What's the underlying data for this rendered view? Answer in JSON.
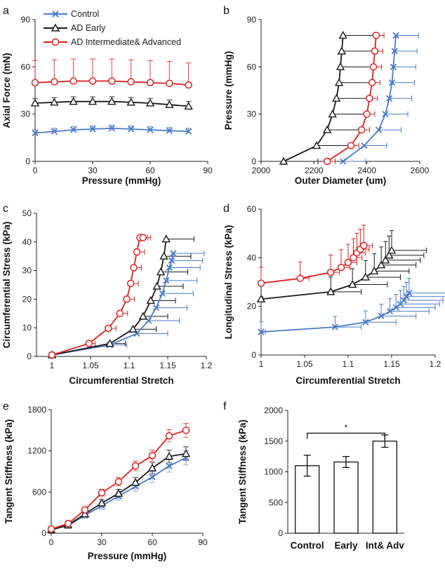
{
  "colors": {
    "control": "#4a7bc8",
    "early": "#1a1a1a",
    "advanced": "#e02020",
    "axis": "#222222"
  },
  "legend": {
    "control": "Control",
    "early": "AD Early",
    "advanced": "AD Intermediate& Advanced"
  },
  "chart_data": [
    {
      "panel": "a",
      "type": "line",
      "xlabel": "Pressure (mmHg)",
      "ylabel": "Axial Force (mN)",
      "xlim": [
        0,
        90
      ],
      "ylim": [
        0,
        90
      ],
      "xticks": [
        "0",
        "30",
        "60",
        "90"
      ],
      "yticks": [
        "0",
        "30",
        "60",
        "90"
      ],
      "series": [
        {
          "name": "Control",
          "x": [
            0,
            10,
            20,
            30,
            40,
            50,
            60,
            70,
            80
          ],
          "y": [
            18,
            19,
            20,
            20.5,
            21,
            20.5,
            20,
            19.5,
            19
          ],
          "err": [
            2,
            2,
            2,
            2,
            2,
            2,
            2,
            2,
            2
          ]
        },
        {
          "name": "AD Early",
          "x": [
            0,
            10,
            20,
            30,
            40,
            50,
            60,
            70,
            80
          ],
          "y": [
            37,
            37.5,
            38,
            38,
            38,
            37.5,
            37,
            36,
            35
          ],
          "err": [
            3,
            3,
            3,
            3,
            3,
            3,
            3,
            3,
            3
          ]
        },
        {
          "name": "AD Intermediate& Advanced",
          "x": [
            0,
            10,
            20,
            30,
            40,
            50,
            60,
            70,
            80
          ],
          "y": [
            50,
            50.5,
            51,
            51,
            51,
            50.5,
            50,
            49.5,
            48.5
          ],
          "err": [
            14,
            14,
            14,
            14,
            14,
            14,
            14,
            14,
            14
          ]
        }
      ]
    },
    {
      "panel": "b",
      "type": "line",
      "xlabel": "Outer Diameter (um)",
      "ylabel": "Pressure (mmHg)",
      "xlim": [
        2000,
        2600
      ],
      "ylim": [
        0,
        90
      ],
      "xticks": [
        "2000",
        "2200",
        "2400",
        "2600"
      ],
      "yticks": [
        "0",
        "30",
        "60",
        "90"
      ],
      "series": [
        {
          "name": "Control",
          "x": [
            2310,
            2390,
            2445,
            2470,
            2485,
            2495,
            2500,
            2505,
            2510
          ],
          "y": [
            0,
            10,
            20,
            30,
            40,
            50,
            60,
            70,
            80
          ],
          "err": [
            85,
            85,
            85,
            85,
            85,
            85,
            85,
            85,
            85
          ]
        },
        {
          "name": "AD Early",
          "x": [
            2085,
            2210,
            2250,
            2270,
            2285,
            2295,
            2300,
            2305,
            2310
          ],
          "y": [
            0,
            10,
            20,
            30,
            40,
            50,
            60,
            70,
            80
          ],
          "err": [
            130,
            130,
            130,
            130,
            130,
            130,
            130,
            130,
            130
          ]
        },
        {
          "name": "AD Intermediate& Advanced",
          "x": [
            2250,
            2340,
            2380,
            2400,
            2410,
            2420,
            2425,
            2430,
            2435
          ],
          "y": [
            0,
            10,
            20,
            30,
            40,
            50,
            60,
            70,
            80
          ],
          "err": [
            30,
            30,
            30,
            30,
            30,
            30,
            30,
            30,
            30
          ]
        }
      ]
    },
    {
      "panel": "c",
      "type": "line",
      "xlabel": "Circumferential Stretch",
      "ylabel": "Circumferential Stress (kPa)",
      "xlim": [
        0.98,
        1.2
      ],
      "ylim": [
        0,
        50
      ],
      "xticks": [
        "1",
        "1.05",
        "1.1",
        "1.15",
        "1.2"
      ],
      "yticks": [
        "0",
        "10",
        "20",
        "30",
        "40",
        "50"
      ],
      "series": [
        {
          "name": "Control",
          "x": [
            1.0,
            1.075,
            1.11,
            1.125,
            1.135,
            1.143,
            1.148,
            1.152,
            1.155,
            1.157
          ],
          "y": [
            0.5,
            4,
            8,
            12.5,
            17,
            22,
            26.5,
            31,
            33.5,
            36
          ],
          "err": [
            0.002,
            0.022,
            0.04,
            0.04,
            0.04,
            0.04,
            0.04,
            0.04,
            0.04,
            0.04
          ]
        },
        {
          "name": "AD Early",
          "x": [
            1.0,
            1.075,
            1.105,
            1.118,
            1.128,
            1.136,
            1.141,
            1.145,
            1.148
          ],
          "y": [
            0.5,
            4.5,
            9.5,
            14,
            19.5,
            24.5,
            29.5,
            35,
            41
          ],
          "err": [
            0.002,
            0.02,
            0.03,
            0.032,
            0.032,
            0.034,
            0.035,
            0.035,
            0.036
          ]
        },
        {
          "name": "AD Intermediate& Advanced",
          "x": [
            1.0,
            1.048,
            1.073,
            1.088,
            1.097,
            1.102,
            1.106,
            1.11,
            1.114,
            1.118
          ],
          "y": [
            0.5,
            4.5,
            9.8,
            15,
            20,
            25.5,
            31,
            36.5,
            41.5,
            41.5
          ],
          "err": [
            0.002,
            0.008,
            0.01,
            0.01,
            0.01,
            0.01,
            0.01,
            0.01,
            0.01,
            0.01
          ]
        }
      ]
    },
    {
      "panel": "d",
      "type": "line",
      "xlabel": "Circumferential Stretch",
      "ylabel": "Longitudinal Stress (kPa)",
      "xlim": [
        1.0,
        1.2
      ],
      "ylim": [
        0,
        60
      ],
      "xticks": [
        "1",
        "1.05",
        "1.1",
        "1.15",
        "1.2"
      ],
      "yticks": [
        "0",
        "20",
        "40",
        "60"
      ],
      "series": [
        {
          "name": "Control",
          "x": [
            1.0,
            1.085,
            1.12,
            1.138,
            1.148,
            1.155,
            1.16,
            1.164,
            1.167,
            1.17
          ],
          "y": [
            9.5,
            11.5,
            13.5,
            16,
            18,
            19.5,
            21,
            22.5,
            24,
            25.5
          ],
          "err": [
            0.005,
            0.03,
            0.035,
            0.04,
            0.045,
            0.045,
            0.045,
            0.045,
            0.045,
            0.045
          ]
        },
        {
          "name": "AD Early",
          "x": [
            1.0,
            1.08,
            1.105,
            1.12,
            1.13,
            1.138,
            1.143,
            1.147,
            1.15
          ],
          "y": [
            23,
            26,
            29,
            32,
            34.5,
            37,
            39,
            41,
            43
          ],
          "err": [
            0.002,
            0.035,
            0.04,
            0.04,
            0.04,
            0.04,
            0.04,
            0.04,
            0.04
          ]
        },
        {
          "name": "AD Intermediate& Advanced",
          "x": [
            1.0,
            1.045,
            1.08,
            1.092,
            1.1,
            1.106,
            1.11,
            1.114,
            1.118
          ],
          "y": [
            29.5,
            31.5,
            34,
            36,
            38,
            40,
            42,
            43.5,
            45
          ],
          "err": [
            0.002,
            0.01,
            0.01,
            0.01,
            0.01,
            0.01,
            0.01,
            0.01,
            0.01
          ]
        }
      ]
    },
    {
      "panel": "e",
      "type": "line",
      "xlabel": "Pressure (mmHg)",
      "ylabel": "Tangent Stiffness (kPa)",
      "xlim": [
        0,
        90
      ],
      "ylim": [
        0,
        1800
      ],
      "xticks": [
        "0",
        "30",
        "60",
        "90"
      ],
      "yticks": [
        "0",
        "600",
        "1200",
        "1800"
      ],
      "series": [
        {
          "name": "Control",
          "x": [
            0,
            10,
            20,
            30,
            40,
            50,
            60,
            70,
            80
          ],
          "y": [
            50,
            110,
            260,
            400,
            540,
            680,
            820,
            980,
            1100
          ],
          "err": [
            30,
            40,
            40,
            50,
            60,
            70,
            80,
            90,
            100
          ]
        },
        {
          "name": "AD Early",
          "x": [
            0,
            10,
            20,
            30,
            40,
            50,
            60,
            70,
            80
          ],
          "y": [
            50,
            120,
            280,
            440,
            580,
            740,
            950,
            1120,
            1160
          ],
          "err": [
            30,
            40,
            40,
            50,
            60,
            70,
            80,
            90,
            100
          ]
        },
        {
          "name": "AD Intermediate& Advanced",
          "x": [
            0,
            10,
            20,
            30,
            40,
            50,
            60,
            70,
            80
          ],
          "y": [
            60,
            140,
            340,
            590,
            750,
            980,
            1130,
            1420,
            1500
          ],
          "err": [
            30,
            40,
            40,
            50,
            60,
            70,
            80,
            90,
            100
          ]
        }
      ]
    },
    {
      "panel": "f",
      "type": "bar",
      "categories": [
        "Control",
        "Early",
        "Int& Adv"
      ],
      "values": [
        1100,
        1160,
        1500
      ],
      "err": [
        170,
        90,
        100
      ],
      "ylabel": "Tangent Stiffness (kPa)",
      "xlabel": "",
      "ylim": [
        0,
        2000
      ],
      "yticks": [
        "0",
        "500",
        "1000",
        "1500",
        "2000"
      ],
      "significance": "*"
    }
  ]
}
